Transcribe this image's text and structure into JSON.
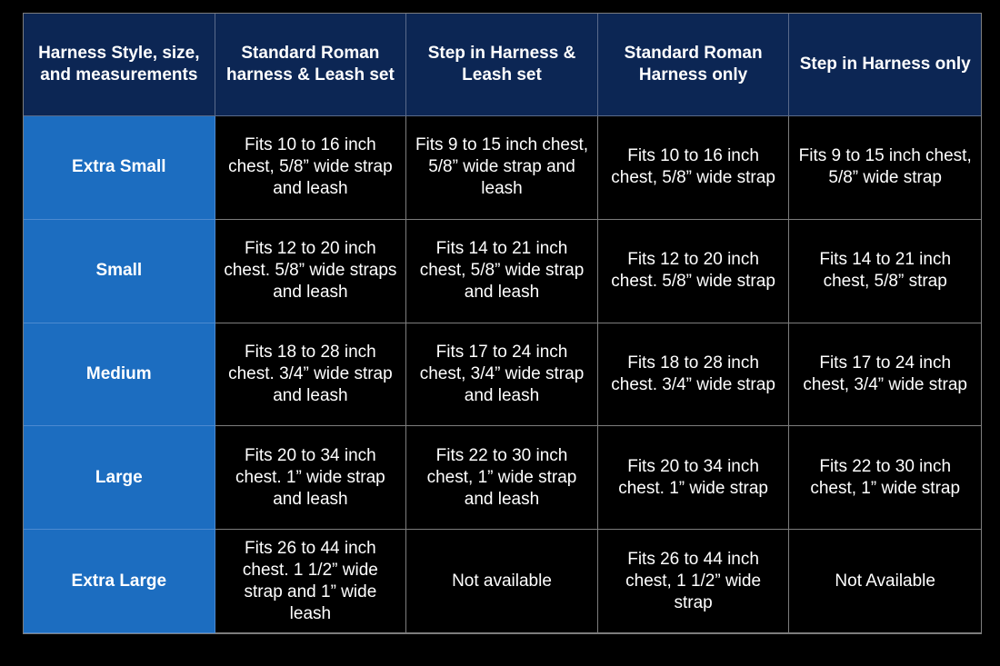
{
  "table": {
    "header": [
      "Harness Style, size, and measurements",
      "Standard Roman harness & Leash set",
      "Step in Harness & Leash set",
      "Standard Roman Harness only",
      "Step in Harness only"
    ],
    "rows": [
      [
        "Extra Small",
        "Fits 10 to 16 inch chest, 5/8” wide strap and leash",
        "Fits 9 to 15 inch chest, 5/8” wide strap and leash",
        "Fits 10 to 16 inch chest, 5/8” wide strap",
        "Fits 9 to 15 inch chest, 5/8” wide strap"
      ],
      [
        "Small",
        "Fits 12 to 20 inch chest. 5/8” wide straps and leash",
        "Fits 14 to 21 inch chest, 5/8” wide strap and leash",
        "Fits 12 to 20 inch chest. 5/8” wide strap",
        "Fits 14 to 21 inch chest, 5/8” strap"
      ],
      [
        "Medium",
        "Fits 18 to 28 inch chest. 3/4” wide strap and leash",
        "Fits 17 to 24 inch chest, 3/4” wide strap and leash",
        "Fits 18 to 28 inch chest. 3/4” wide strap",
        "Fits 17 to 24 inch chest, 3/4” wide strap"
      ],
      [
        "Large",
        "Fits 20 to 34 inch chest. 1” wide strap and leash",
        "Fits 22 to 30 inch chest, 1” wide strap and leash",
        "Fits 20 to 34 inch chest. 1” wide strap",
        "Fits 22 to 30 inch chest, 1” wide strap"
      ],
      [
        "Extra Large",
        "Fits 26 to 44 inch chest. 1 1/2” wide strap and 1” wide leash",
        "Not available",
        "Fits 26 to 44 inch chest, 1 1/2” wide strap",
        "Not Available"
      ]
    ]
  }
}
